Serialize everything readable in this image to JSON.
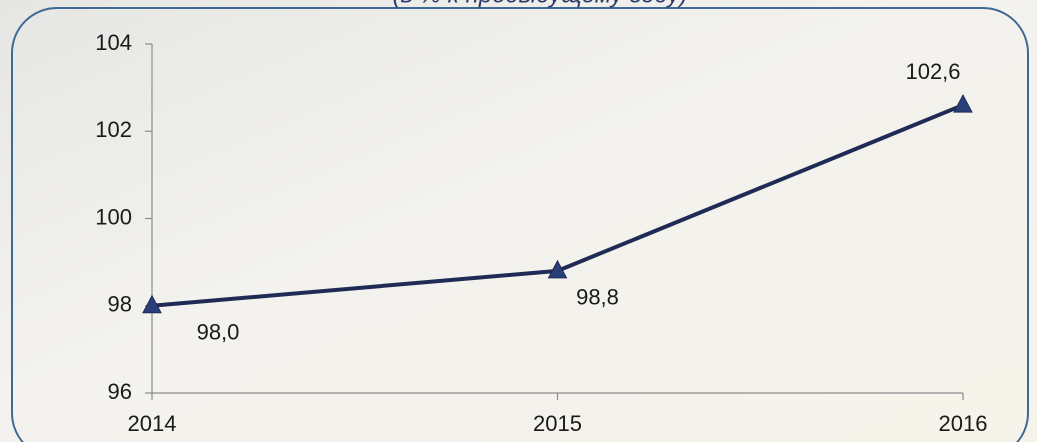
{
  "chart_data": {
    "type": "line",
    "subtitle": "(в % к предыдущему году)",
    "x": [
      2014,
      2015,
      2016
    ],
    "xlim": [
      2014,
      2016
    ],
    "xticks": [
      2014,
      2015,
      2016
    ],
    "ylim": [
      96,
      104
    ],
    "yticks": [
      96,
      98,
      100,
      102,
      104
    ],
    "grid": false,
    "series": [
      {
        "color": "#1f2b55",
        "values": [
          98.0,
          98.8,
          102.6
        ],
        "value_labels": [
          "98,0",
          "98,8",
          "102,6"
        ]
      }
    ]
  }
}
